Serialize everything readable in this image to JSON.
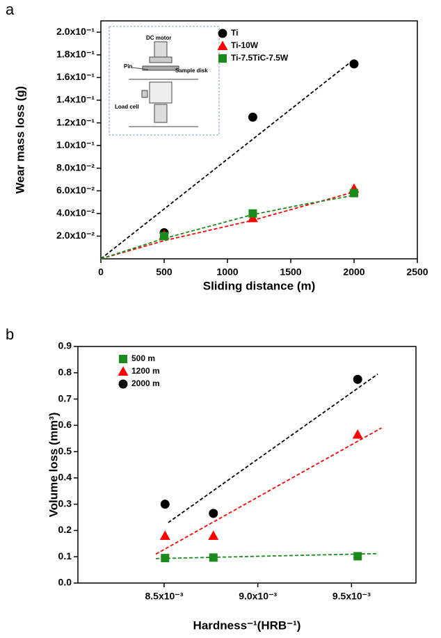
{
  "chart_data": [
    {
      "type": "scatter",
      "panel": "a",
      "x_label": "Sliding distance (m)",
      "y_label": "Wear mass loss (g)",
      "x": [
        500,
        1200,
        2000
      ],
      "xlim": [
        0,
        2500
      ],
      "xticks": [
        0,
        500,
        1000,
        1500,
        2000,
        2500
      ],
      "ylim": [
        0,
        0.21
      ],
      "yticks": [
        {
          "value": 0.02,
          "label": "2.0x10⁻²"
        },
        {
          "value": 0.04,
          "label": "4.0x10⁻²"
        },
        {
          "value": 0.06,
          "label": "6.0x10⁻²"
        },
        {
          "value": 0.08,
          "label": "8.0x10⁻²"
        },
        {
          "value": 0.1,
          "label": "1.0x10⁻¹"
        },
        {
          "value": 0.12,
          "label": "1.2x10⁻¹"
        },
        {
          "value": 0.14,
          "label": "1.4x10⁻¹"
        },
        {
          "value": 0.16,
          "label": "1.6x10⁻¹"
        },
        {
          "value": 0.18,
          "label": "1.8x10⁻¹"
        },
        {
          "value": 0.2,
          "label": "2.0x10⁻¹"
        }
      ],
      "legend": "upper right",
      "series": [
        {
          "name": "Ti",
          "color": "#000000",
          "marker": "circle",
          "values": [
            0.023,
            0.125,
            0.172
          ],
          "trend": {
            "color": "#000000",
            "x": [
              0,
              2000
            ],
            "values": [
              0,
              0.176
            ]
          }
        },
        {
          "name": "Ti-10W",
          "color": "#ff0000",
          "marker": "triangle",
          "values": [
            0.021,
            0.036,
            0.062
          ],
          "trend": {
            "color": "#ff0000",
            "x": [
              0,
              500,
              1200,
              2000
            ],
            "values": [
              0,
              0.016,
              0.034,
              0.059
            ]
          }
        },
        {
          "name": "Ti-7.5TiC-7.5W",
          "color": "#1a8a1a",
          "marker": "square",
          "values": [
            0.02,
            0.04,
            0.058
          ],
          "trend": {
            "color": "#1a8a1a",
            "x": [
              0,
              500,
              1200,
              1600,
              2000
            ],
            "values": [
              0,
              0.018,
              0.039,
              0.048,
              0.056
            ]
          }
        }
      ],
      "inset_labels": [
        "DC motor",
        "Pin",
        "Sample disk",
        "Load cell"
      ]
    },
    {
      "type": "scatter",
      "panel": "b",
      "x_label": "Hardness⁻¹(HRB⁻¹)",
      "y_label": "Volume loss (mm³)",
      "x": [
        0.008505,
        0.008763,
        0.009533
      ],
      "xlim": [
        0.00804,
        0.009844
      ],
      "xticks": [
        {
          "value": 0.0085,
          "label": "8.5x10⁻³"
        },
        {
          "value": 0.009,
          "label": "9.0x10⁻³"
        },
        {
          "value": 0.0095,
          "label": "9.5x10⁻³"
        }
      ],
      "ylim": [
        0,
        0.9
      ],
      "yticks": [
        {
          "value": 0,
          "label": "0.0"
        },
        0.1,
        0.2,
        0.3,
        0.4,
        0.5,
        0.6,
        0.7,
        0.8,
        0.9
      ],
      "legend": "upper left",
      "series": [
        {
          "name": "500 m",
          "color": "#1a8a1a",
          "marker": "square",
          "values": [
            0.095,
            0.097,
            0.102
          ],
          "trend": {
            "color": "#1a8a1a",
            "x": [
              0.008456,
              0.00964
            ],
            "values": [
              0.093,
              0.112
            ]
          }
        },
        {
          "name": "1200 m",
          "color": "#ff0000",
          "marker": "triangle",
          "values": [
            0.18,
            0.18,
            0.565
          ],
          "trend": {
            "color": "#ff0000",
            "x": [
              0.008456,
              0.00966
            ],
            "values": [
              0.11,
              0.59
            ]
          }
        },
        {
          "name": "2000 m",
          "color": "#000000",
          "marker": "circle",
          "values": [
            0.3,
            0.265,
            0.775
          ],
          "trend": {
            "color": "#000000",
            "x": [
              0.008522,
              0.00964
            ],
            "values": [
              0.23,
              0.795
            ]
          }
        }
      ]
    }
  ]
}
